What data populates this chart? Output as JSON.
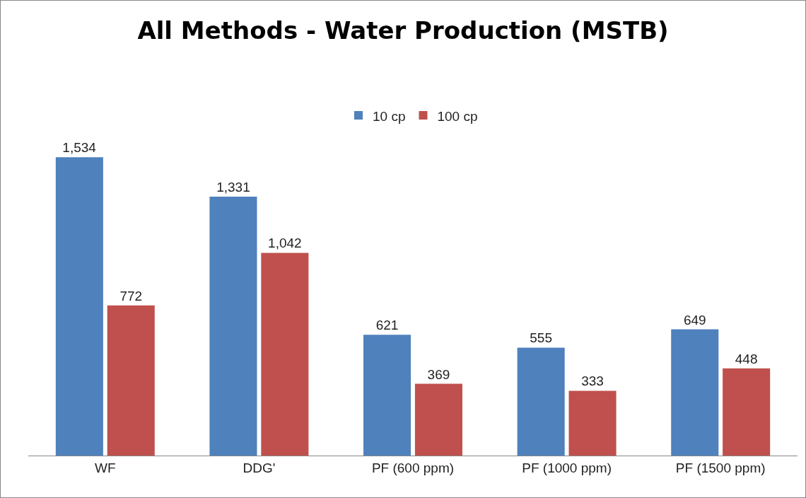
{
  "chart_data": {
    "type": "bar",
    "title": "All Methods - Water Production (MSTB)",
    "categories": [
      "WF",
      "DDG'",
      "PF (600 ppm)",
      "PF (1000 ppm)",
      "PF (1500 ppm)"
    ],
    "series": [
      {
        "name": "10 cp",
        "color": "#4f81bd",
        "values": [
          1534,
          1331,
          621,
          555,
          649
        ],
        "value_labels": [
          "1,534",
          "1,331",
          "621",
          "555",
          "649"
        ]
      },
      {
        "name": "100 cp",
        "color": "#c0504d",
        "values": [
          772,
          1042,
          369,
          333,
          448
        ],
        "value_labels": [
          "772",
          "1,042",
          "369",
          "333",
          "448"
        ]
      }
    ],
    "legend": "top"
  }
}
